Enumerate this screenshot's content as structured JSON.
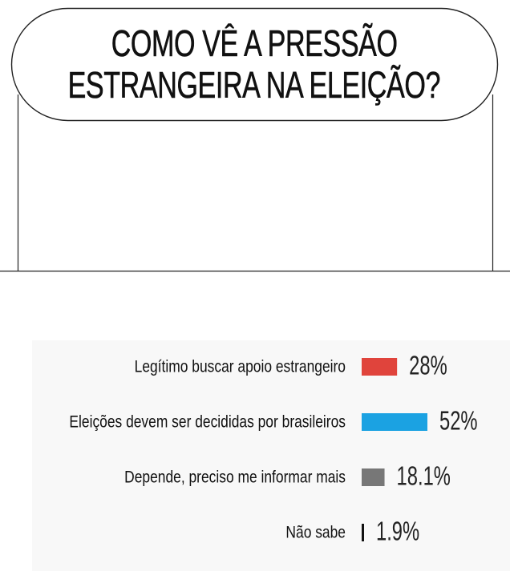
{
  "title_lines": [
    "COMO VÊ A PRESSÃO",
    "ESTRANGEIRA NA ELEIÇÃO?"
  ],
  "colors": {
    "background": "#ffffff",
    "panel": "#f8f8f8",
    "outline": "#222222",
    "text": "#111111"
  },
  "chart_data": {
    "type": "bar",
    "orientation": "horizontal",
    "title": "COMO VÊ A PRESSÃO ESTRANGEIRA NA ELEIÇÃO?",
    "unit": "%",
    "categories": [
      "Legítimo buscar apoio estrangeiro",
      "Eleições devem ser decididas por brasileiros",
      "Depende, preciso me informar mais",
      "Não sabe"
    ],
    "values": [
      28,
      52,
      18.1,
      1.9
    ],
    "value_labels": [
      "28%",
      "52%",
      "18.1%",
      "1.9%"
    ],
    "bar_colors": [
      "#e0443c",
      "#1ba2e2",
      "#777777",
      "#111111"
    ],
    "grid": false,
    "legend": "none"
  }
}
